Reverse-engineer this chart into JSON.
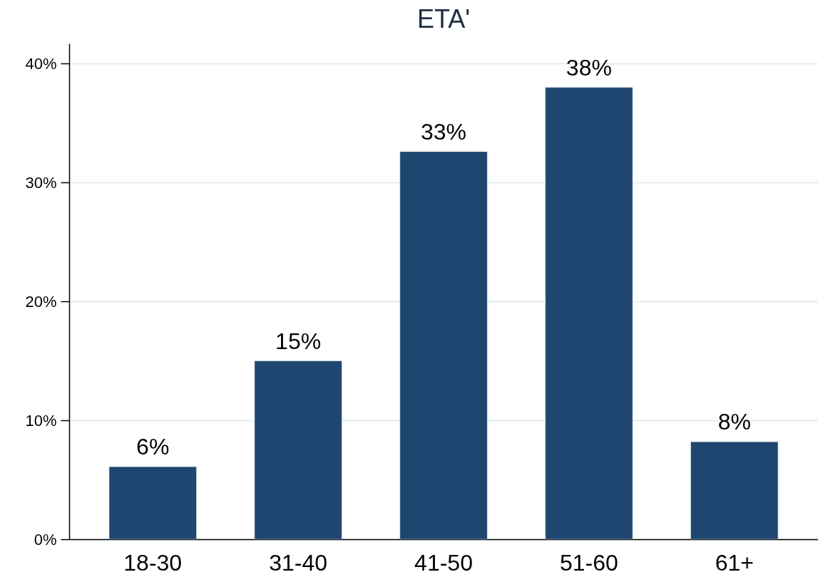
{
  "chart_data": {
    "type": "bar",
    "title": "ETA'",
    "categories": [
      "18-30",
      "31-40",
      "41-50",
      "51-60",
      "61+"
    ],
    "values": [
      6.1,
      15.0,
      32.6,
      38.0,
      8.2
    ],
    "value_labels": [
      "6%",
      "15%",
      "33%",
      "38%",
      "8%"
    ],
    "color": "#1f4670",
    "ylim": [
      0,
      41.7
    ],
    "yticks": [
      {
        "value": 0,
        "label": "0%"
      },
      {
        "value": 10,
        "label": "10%"
      },
      {
        "value": 20,
        "label": "20%"
      },
      {
        "value": 30,
        "label": "30%"
      },
      {
        "value": 40,
        "label": "40%"
      }
    ],
    "grid": "y"
  }
}
